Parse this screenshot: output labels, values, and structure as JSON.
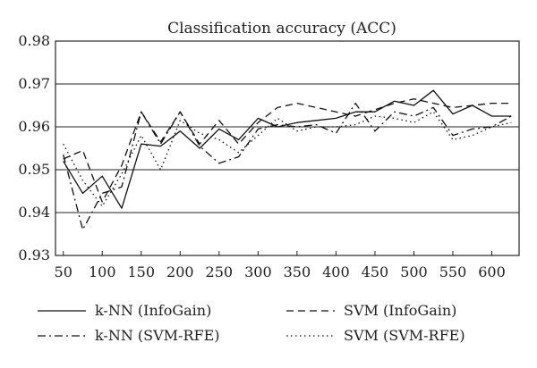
{
  "chart_data": {
    "type": "line",
    "title": "Classification accuracy (ACC)",
    "xlabel": "",
    "ylabel": "",
    "xlim": [
      40,
      635
    ],
    "ylim": [
      0.93,
      0.98
    ],
    "grid": "horizontal",
    "legend_position": "bottom",
    "x_ticks": [
      50,
      100,
      150,
      200,
      250,
      300,
      350,
      400,
      450,
      500,
      550,
      600
    ],
    "y_ticks": [
      0.93,
      0.94,
      0.95,
      0.96,
      0.97,
      0.98
    ],
    "x_tick_labels": [
      "50",
      "100",
      "150",
      "200",
      "250",
      "300",
      "350",
      "400",
      "450",
      "500",
      "550",
      "600"
    ],
    "y_tick_labels": [
      "0.93",
      "0.94",
      "0.95",
      "0.96",
      "0.97",
      "0.98"
    ],
    "x": [
      50,
      75,
      100,
      125,
      150,
      175,
      200,
      225,
      250,
      275,
      300,
      325,
      350,
      375,
      400,
      425,
      450,
      475,
      500,
      525,
      550,
      575,
      600,
      625
    ],
    "series": [
      {
        "name": "k-NN (InfoGain)",
        "dash": "solid",
        "values": [
          0.952,
          0.9445,
          0.9485,
          0.941,
          0.956,
          0.9555,
          0.959,
          0.955,
          0.9595,
          0.957,
          0.962,
          0.96,
          0.961,
          0.9615,
          0.962,
          0.9635,
          0.9635,
          0.966,
          0.965,
          0.9685,
          0.963,
          0.965,
          0.9625,
          0.9625
        ]
      },
      {
        "name": "SVM (InfoGain)",
        "dash": "dashed",
        "values": [
          0.9525,
          0.9545,
          0.9425,
          0.951,
          0.9635,
          0.9565,
          0.9635,
          0.956,
          0.9615,
          0.956,
          0.961,
          0.9645,
          0.9655,
          0.9645,
          0.9635,
          0.9625,
          0.964,
          0.9655,
          0.9665,
          0.9655,
          0.9645,
          0.965,
          0.9655,
          0.9655
        ]
      },
      {
        "name": "k-NN (SVM-RFE)",
        "dash": "dashdot",
        "values": [
          0.9535,
          0.936,
          0.9445,
          0.946,
          0.9635,
          0.956,
          0.9635,
          0.9555,
          0.9515,
          0.953,
          0.9595,
          0.9605,
          0.96,
          0.9605,
          0.9585,
          0.9655,
          0.959,
          0.9635,
          0.9625,
          0.9645,
          0.958,
          0.9595,
          0.96,
          0.9625
        ]
      },
      {
        "name": "SVM (SVM-RFE)",
        "dash": "dotted",
        "values": [
          0.956,
          0.9475,
          0.9415,
          0.949,
          0.958,
          0.95,
          0.9615,
          0.9585,
          0.957,
          0.954,
          0.958,
          0.962,
          0.959,
          0.96,
          0.96,
          0.9605,
          0.9625,
          0.962,
          0.961,
          0.9635,
          0.957,
          0.958,
          0.96,
          0.961
        ]
      }
    ],
    "legend_layout": [
      [
        "k-NN (InfoGain)",
        "SVM (InfoGain)"
      ],
      [
        "k-NN (SVM-RFE)",
        "SVM (SVM-RFE)"
      ]
    ]
  }
}
